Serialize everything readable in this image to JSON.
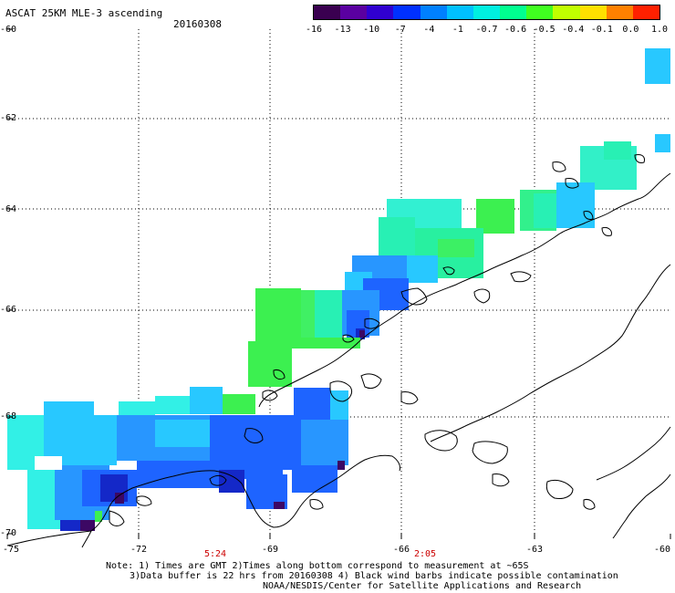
{
  "header": {
    "title": "ASCAT 25KM MLE-3 ascending",
    "date": "20160308"
  },
  "colorbar": {
    "tick_labels": [
      "-16",
      "-13",
      "-10",
      "-7",
      "-4",
      "-1",
      "-0.7",
      "-0.6",
      "-0.5",
      "-0.4",
      "-0.1",
      "0.0",
      "1.0"
    ],
    "colors": [
      "#3a0050",
      "#5a00a0",
      "#3000d0",
      "#0030ff",
      "#0080ff",
      "#00c0ff",
      "#00f0e0",
      "#00ff90",
      "#40ff20",
      "#c0ff00",
      "#ffe000",
      "#ff8000",
      "#ff2000"
    ]
  },
  "axes": {
    "lat_labels": [
      "-60",
      "-62",
      "-64",
      "-66",
      "-68",
      "-70"
    ],
    "lon_labels": [
      "-75",
      "-72",
      "-69",
      "-66",
      "-63",
      "-60"
    ],
    "time_labels": [
      "5:24",
      "2:05"
    ]
  },
  "notes": {
    "line1": "Note: 1) Times are GMT 2)Times along bottom correspond to measurement at ~65S",
    "line2": "3)Data buffer is 22 hrs from 20160308 4) Black wind barbs indicate possible contamination",
    "line3": "NOAA/NESDIS/Center for Satellite Applications and Research"
  },
  "legend_colors": {
    "deep_purple": "#3c0864",
    "dark_blue": "#1428c8",
    "blue": "#1e64ff",
    "mid_blue": "#2896ff",
    "light_blue": "#28c8ff",
    "cyan": "#32f0e6",
    "aqua_green": "#28f0b4",
    "green": "#3cf050"
  }
}
